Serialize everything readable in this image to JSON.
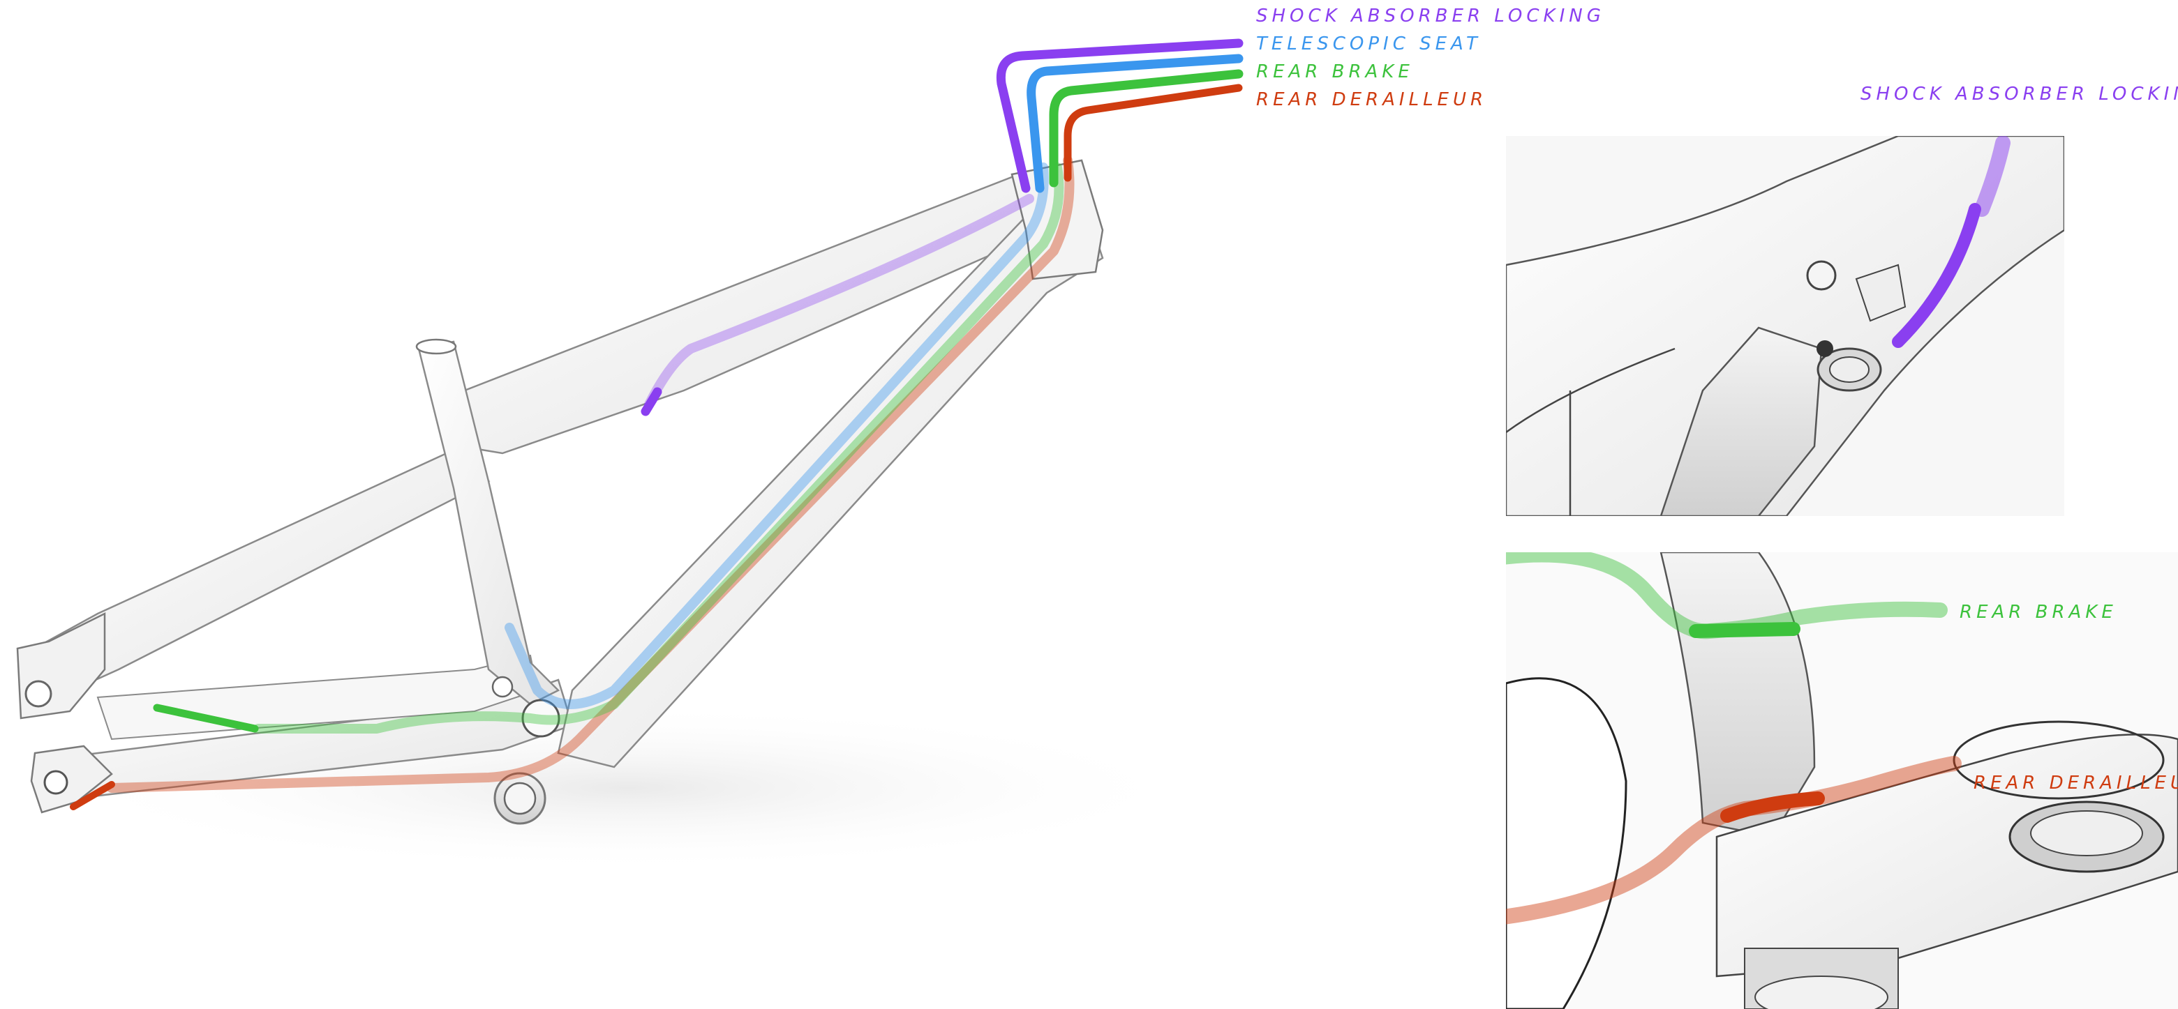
{
  "colors": {
    "shock": "#8a3ff0",
    "seat": "#3a96ee",
    "brake": "#3cc23c",
    "derailleur": "#cf3c10",
    "frame_stroke": "#7a7a7a",
    "frame_fill": "#ffffff"
  },
  "main_legend": {
    "shock": "SHOCK ABSORBER LOCKING",
    "seat": "TELESCOPIC SEAT",
    "brake": "REAR BRAKE",
    "derailleur": "REAR DERAILLEUR"
  },
  "detail_top": {
    "label": "SHOCK ABSORBER LOCKING"
  },
  "detail_bottom": {
    "brake_label": "REAR BRAKE",
    "derailleur_label": "REAR DERAILLEUR"
  }
}
